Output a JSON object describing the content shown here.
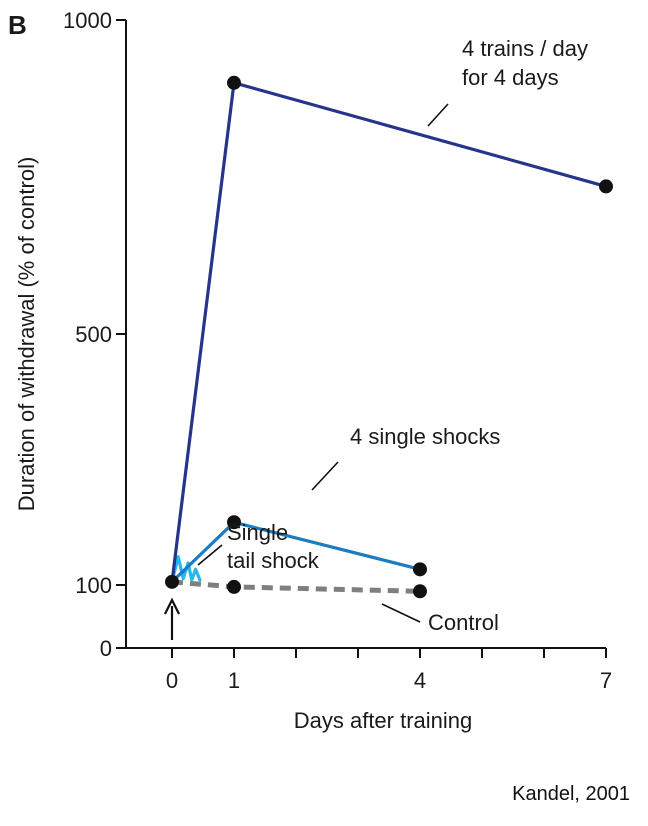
{
  "panel_label": "B",
  "credit": "Kandel, 2001",
  "chart_data": {
    "type": "line",
    "xlabel": "Days after training",
    "ylabel": "Duration of withdrawal (% of control)",
    "x_ticks": [
      0,
      1,
      4,
      7
    ],
    "x_minor_ticks": [
      2,
      3,
      5,
      6
    ],
    "y_ticks": [
      0,
      100,
      500,
      1000
    ],
    "xlim": [
      -0.5,
      7
    ],
    "ylim": [
      0,
      1000
    ],
    "grid": false,
    "series": [
      {
        "key": "four_trains",
        "name": "4 trains / day\nfor 4 days",
        "color": "#27348b",
        "style": "solid",
        "points": [
          [
            0,
            105
          ],
          [
            1,
            900
          ],
          [
            7,
            735
          ]
        ],
        "markers": [
          [
            1,
            900
          ],
          [
            7,
            735
          ]
        ]
      },
      {
        "key": "four_single",
        "name": "4 single shocks",
        "color": "#1a7cc4",
        "style": "solid",
        "points": [
          [
            0,
            105
          ],
          [
            1,
            200
          ],
          [
            4,
            125
          ]
        ],
        "markers": [
          [
            1,
            200
          ],
          [
            4,
            125
          ]
        ]
      },
      {
        "key": "single_tail",
        "name": "Single\ntail shock",
        "color": "#29b6e8",
        "style": "zigzag",
        "points": [
          [
            0,
            105
          ],
          [
            0.1,
            145
          ],
          [
            0.18,
            110
          ],
          [
            0.26,
            135
          ],
          [
            0.32,
            108
          ],
          [
            0.38,
            125
          ],
          [
            0.45,
            108
          ]
        ],
        "markers": []
      },
      {
        "key": "control",
        "name": "Control",
        "color": "#7f7f7f",
        "style": "dashed",
        "points": [
          [
            0,
            105
          ],
          [
            1,
            97
          ],
          [
            4,
            90
          ]
        ],
        "markers": [
          [
            1,
            97
          ],
          [
            4,
            90
          ]
        ]
      }
    ],
    "origin_marker": [
      0,
      105
    ],
    "training_arrow_x": 0
  }
}
